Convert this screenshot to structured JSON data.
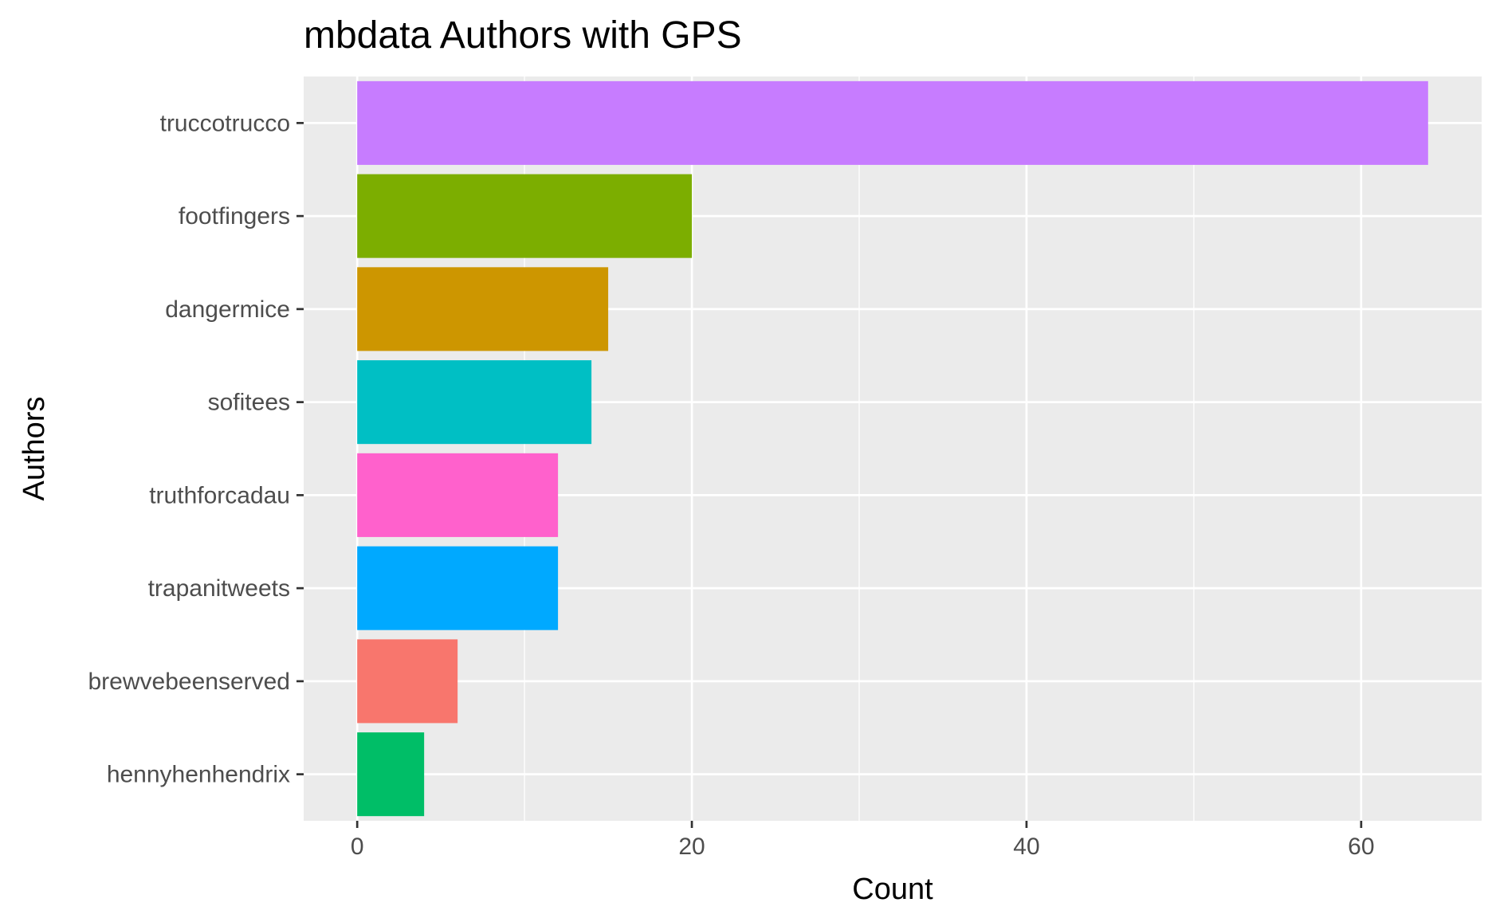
{
  "chart_data": {
    "type": "bar",
    "orientation": "horizontal",
    "title": "mbdata Authors with GPS",
    "xlabel": "Count",
    "ylabel": "Authors",
    "categories": [
      "truccotrucco",
      "footfingers",
      "dangermice",
      "sofitees",
      "truthforcadau",
      "trapanitweets",
      "brewvebeenserved",
      "hennyhenhendrix"
    ],
    "values": [
      64,
      20,
      15,
      14,
      12,
      12,
      6,
      4
    ],
    "colors": [
      "#C77CFF",
      "#7CAE00",
      "#CD9600",
      "#00BFC4",
      "#FF61CC",
      "#00A9FF",
      "#F8766D",
      "#00BE67"
    ],
    "x_ticks": [
      0,
      20,
      40,
      60
    ],
    "xlim": [
      -3.2,
      67.2
    ],
    "grid": true,
    "legend": "none",
    "panel_color": "#EBEBEB"
  }
}
